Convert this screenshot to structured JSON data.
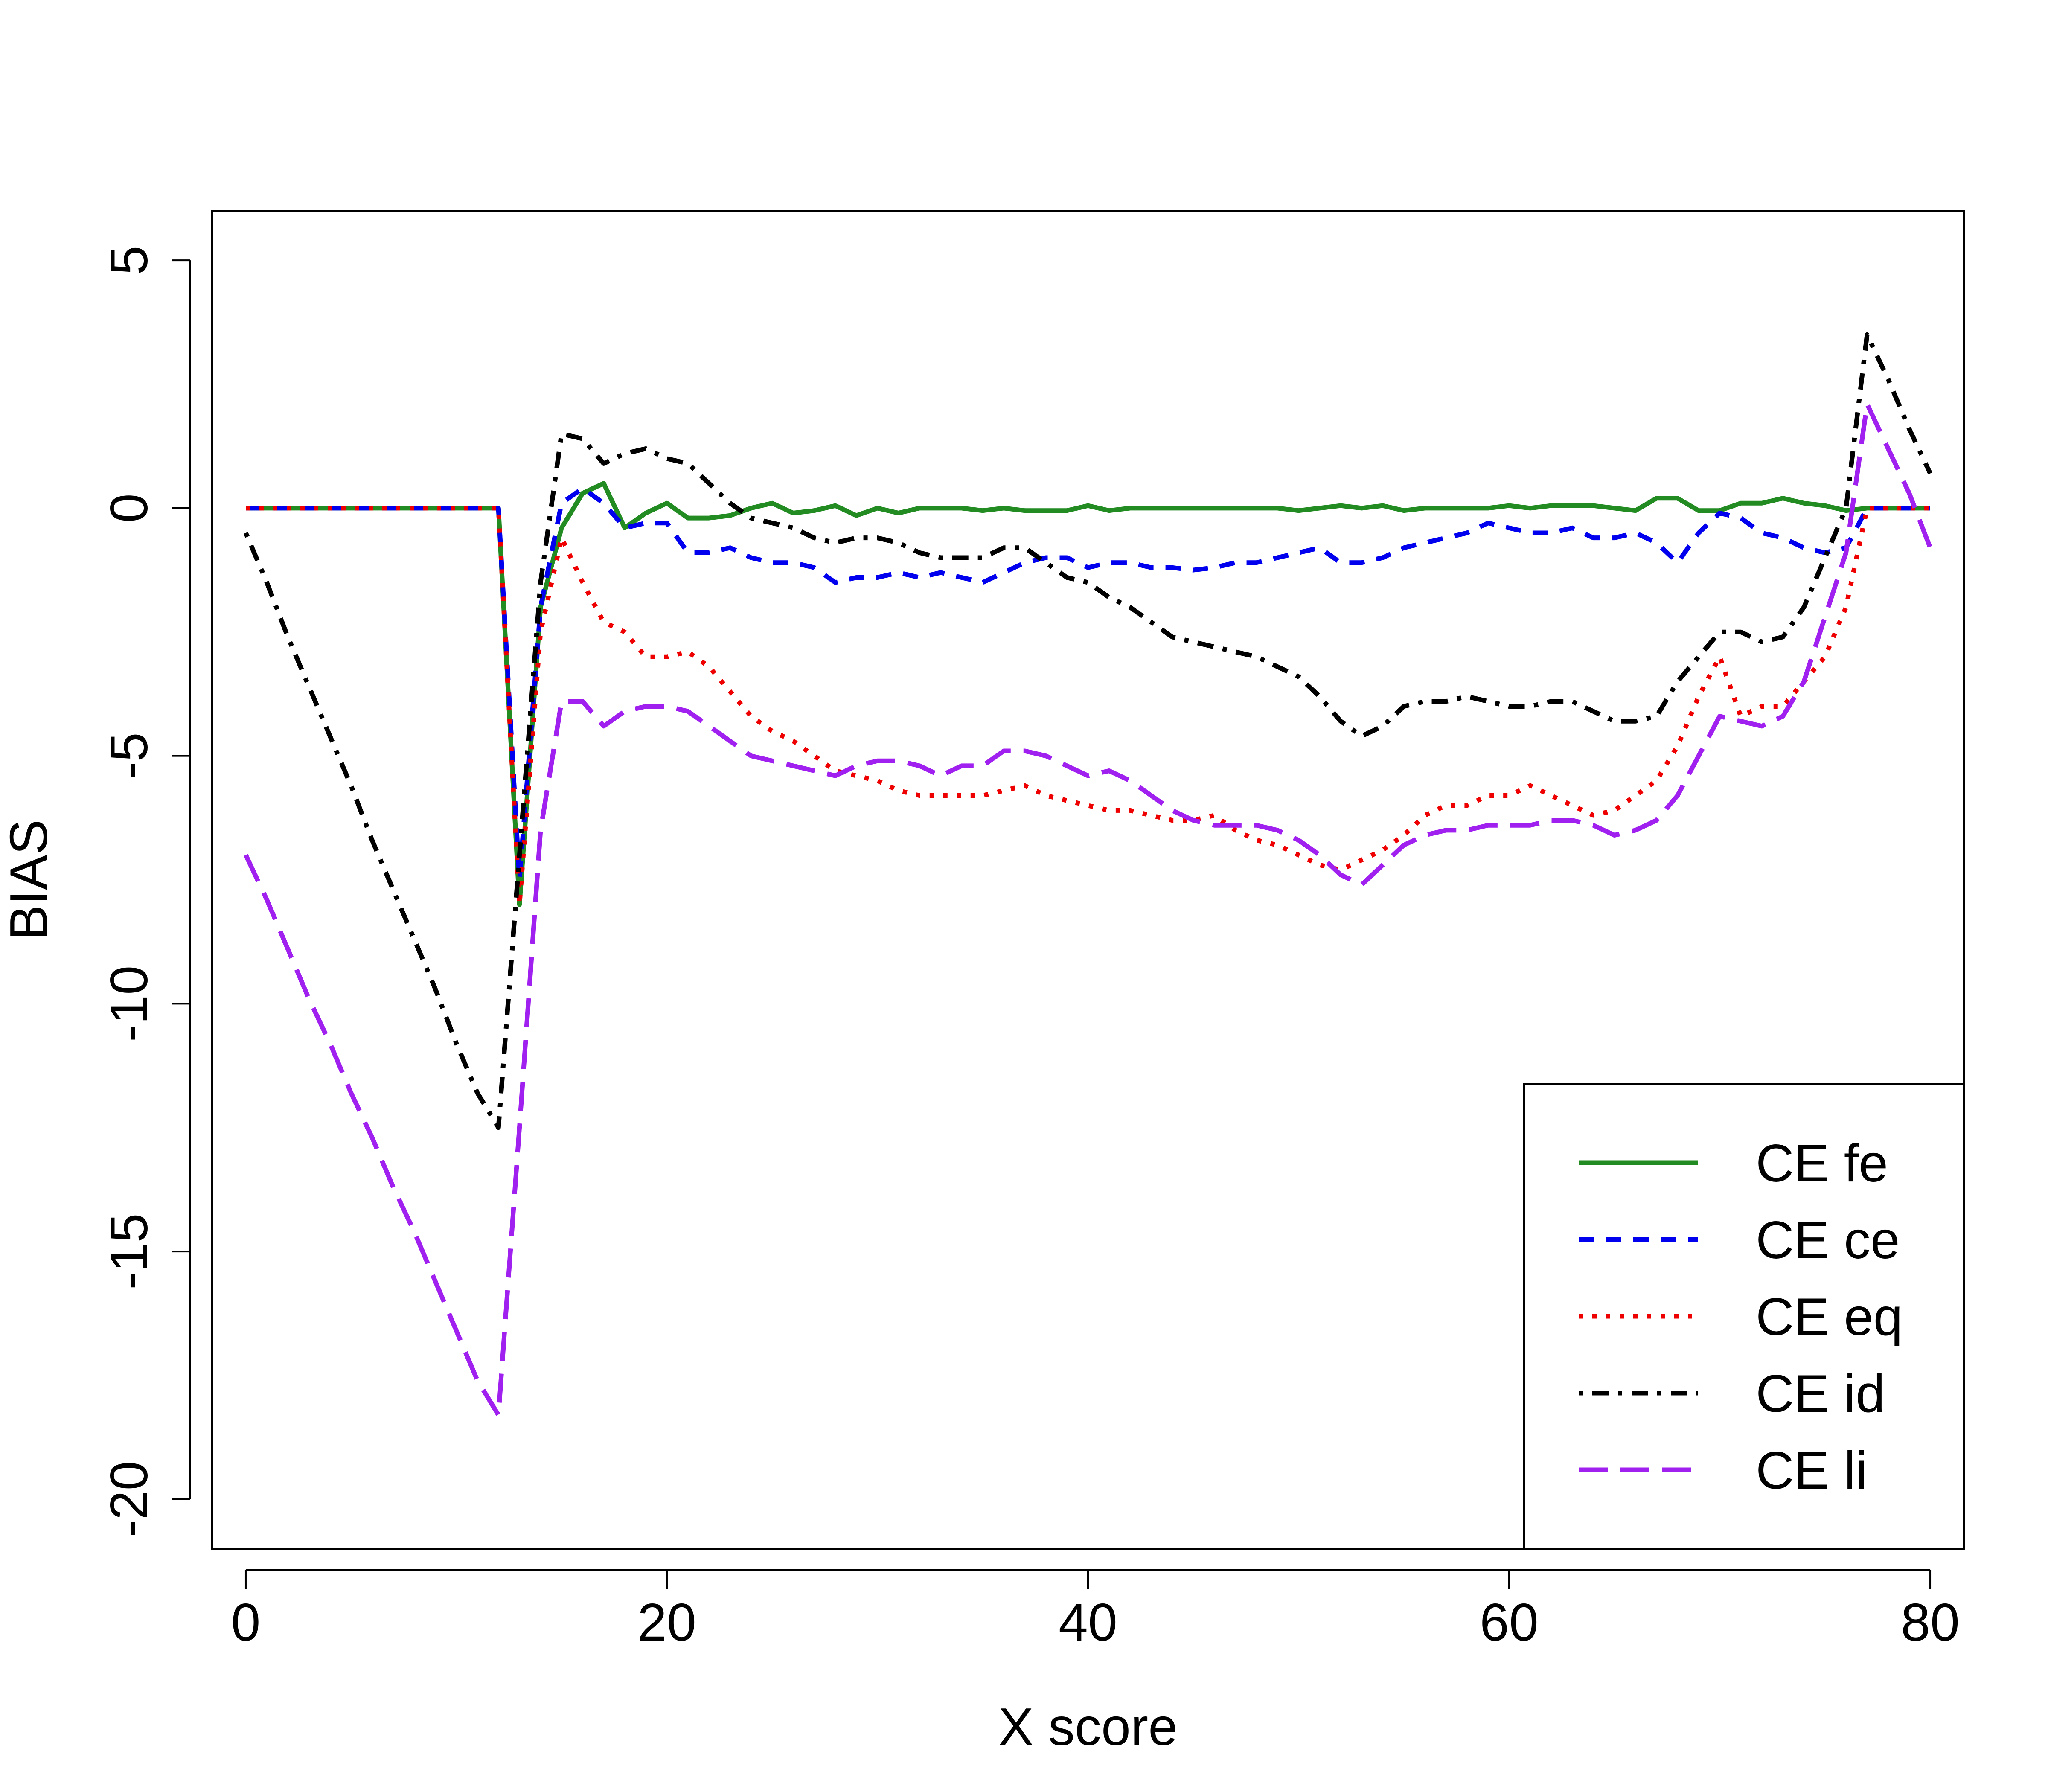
{
  "chart_data": {
    "type": "line",
    "title": "",
    "xlabel": "X score",
    "ylabel": "BIAS",
    "xlim": [
      -1.6,
      81.6
    ],
    "ylim": [
      -21,
      6
    ],
    "x_ticks": [
      0,
      20,
      40,
      60,
      80
    ],
    "y_ticks": [
      -20,
      -15,
      -10,
      -5,
      0,
      5
    ],
    "x_tick_labels": [
      "0",
      "20",
      "40",
      "60",
      "80"
    ],
    "y_tick_labels": [
      "-20",
      "-15",
      "-10",
      "-5",
      "0",
      "5"
    ],
    "grid": false,
    "legend_position": "bottom-right",
    "series": [
      {
        "name": "CE fe",
        "color": "#228B22",
        "dash": "solid",
        "x": [
          0,
          1,
          2,
          3,
          4,
          5,
          6,
          7,
          8,
          9,
          10,
          11,
          12,
          13,
          14,
          15,
          16,
          17,
          18,
          19,
          20,
          21,
          22,
          23,
          24,
          25,
          26,
          27,
          28,
          29,
          30,
          31,
          32,
          33,
          34,
          35,
          36,
          37,
          38,
          39,
          40,
          41,
          42,
          43,
          44,
          45,
          46,
          47,
          48,
          49,
          50,
          51,
          52,
          53,
          54,
          55,
          56,
          57,
          58,
          59,
          60,
          61,
          62,
          63,
          64,
          65,
          66,
          67,
          68,
          69,
          70,
          71,
          72,
          73,
          74,
          75,
          76,
          77,
          78,
          79,
          80
        ],
        "y": [
          0,
          0,
          0,
          0,
          0,
          0,
          0,
          0,
          0,
          0,
          0,
          0,
          0,
          -8,
          -2,
          -0.4,
          0.3,
          0.5,
          -0.4,
          -0.1,
          0.1,
          -0.2,
          -0.2,
          -0.15,
          0,
          0.1,
          -0.1,
          -0.05,
          0.05,
          -0.15,
          0,
          -0.1,
          0,
          0,
          0,
          -0.05,
          0,
          -0.05,
          -0.05,
          -0.05,
          0.05,
          -0.05,
          0,
          0,
          0,
          0,
          0,
          0,
          0,
          0,
          -0.05,
          0,
          0.05,
          0,
          0.05,
          -0.05,
          0,
          0,
          0,
          0,
          0.05,
          0,
          0.05,
          0.05,
          0.05,
          0,
          -0.05,
          0.2,
          0.2,
          -0.05,
          -0.05,
          0.1,
          0.1,
          0.2,
          0.1,
          0.05,
          -0.05,
          0,
          0,
          0,
          0
        ]
      },
      {
        "name": "CE ce",
        "color": "#0000EE",
        "dash": "dashed",
        "x": [
          0,
          1,
          2,
          3,
          4,
          5,
          6,
          7,
          8,
          9,
          10,
          11,
          12,
          13,
          14,
          15,
          16,
          17,
          18,
          19,
          20,
          21,
          22,
          23,
          24,
          25,
          26,
          27,
          28,
          29,
          30,
          31,
          32,
          33,
          34,
          35,
          36,
          37,
          38,
          39,
          40,
          41,
          42,
          43,
          44,
          45,
          46,
          47,
          48,
          49,
          50,
          51,
          52,
          53,
          54,
          55,
          56,
          57,
          58,
          59,
          60,
          61,
          62,
          63,
          64,
          65,
          66,
          67,
          68,
          69,
          70,
          71,
          72,
          73,
          74,
          75,
          76,
          77,
          78,
          79,
          80
        ],
        "y": [
          0,
          0,
          0,
          0,
          0,
          0,
          0,
          0,
          0,
          0,
          0,
          0,
          0,
          -7.5,
          -2,
          0.1,
          0.4,
          0.1,
          -0.4,
          -0.3,
          -0.3,
          -0.9,
          -0.9,
          -0.8,
          -1.0,
          -1.1,
          -1.1,
          -1.2,
          -1.5,
          -1.4,
          -1.4,
          -1.3,
          -1.4,
          -1.3,
          -1.4,
          -1.5,
          -1.3,
          -1.1,
          -1.0,
          -1.0,
          -1.2,
          -1.1,
          -1.1,
          -1.2,
          -1.2,
          -1.25,
          -1.2,
          -1.1,
          -1.1,
          -1.0,
          -0.9,
          -0.8,
          -1.1,
          -1.1,
          -1.0,
          -0.8,
          -0.7,
          -0.6,
          -0.5,
          -0.3,
          -0.4,
          -0.5,
          -0.5,
          -0.4,
          -0.6,
          -0.6,
          -0.5,
          -0.7,
          -1.1,
          -0.5,
          -0.1,
          -0.2,
          -0.5,
          -0.6,
          -0.8,
          -0.9,
          -0.8,
          0,
          0,
          0,
          0
        ]
      },
      {
        "name": "CE eq",
        "color": "#EE0000",
        "dash": "dotted",
        "x": [
          0,
          1,
          2,
          3,
          4,
          5,
          6,
          7,
          8,
          9,
          10,
          11,
          12,
          13,
          14,
          15,
          16,
          17,
          18,
          19,
          20,
          21,
          22,
          23,
          24,
          25,
          26,
          27,
          28,
          29,
          30,
          31,
          32,
          33,
          34,
          35,
          36,
          37,
          38,
          39,
          40,
          41,
          42,
          43,
          44,
          45,
          46,
          47,
          48,
          49,
          50,
          51,
          52,
          53,
          54,
          55,
          56,
          57,
          58,
          59,
          60,
          61,
          62,
          63,
          64,
          65,
          66,
          67,
          68,
          69,
          70,
          71,
          72,
          73,
          74,
          75,
          76,
          77,
          78,
          79,
          80
        ],
        "y": [
          0,
          0,
          0,
          0,
          0,
          0,
          0,
          0,
          0,
          0,
          0,
          0,
          0,
          -8,
          -2.5,
          -0.6,
          -1.5,
          -2.3,
          -2.5,
          -3.0,
          -3.0,
          -2.9,
          -3.2,
          -3.7,
          -4.2,
          -4.5,
          -4.7,
          -5.0,
          -5.3,
          -5.4,
          -5.5,
          -5.7,
          -5.8,
          -5.8,
          -5.8,
          -5.8,
          -5.7,
          -5.6,
          -5.8,
          -5.9,
          -6.0,
          -6.1,
          -6.1,
          -6.2,
          -6.3,
          -6.3,
          -6.2,
          -6.5,
          -6.7,
          -6.8,
          -7.0,
          -7.2,
          -7.3,
          -7.1,
          -6.9,
          -6.6,
          -6.2,
          -6.0,
          -6.0,
          -5.8,
          -5.8,
          -5.6,
          -5.8,
          -6.0,
          -6.2,
          -6.1,
          -5.8,
          -5.5,
          -4.8,
          -3.8,
          -3.0,
          -4.2,
          -4.0,
          -4.0,
          -3.5,
          -3.0,
          -2.0,
          0,
          0,
          0,
          0
        ]
      },
      {
        "name": "CE id",
        "color": "#000000",
        "dash": "dashdot",
        "x": [
          0,
          1,
          2,
          3,
          4,
          5,
          6,
          7,
          8,
          9,
          10,
          11,
          12,
          13,
          14,
          15,
          16,
          17,
          18,
          19,
          20,
          21,
          22,
          23,
          24,
          25,
          26,
          27,
          28,
          29,
          30,
          31,
          32,
          33,
          34,
          35,
          36,
          37,
          38,
          39,
          40,
          41,
          42,
          43,
          44,
          45,
          46,
          47,
          48,
          49,
          50,
          51,
          52,
          53,
          54,
          55,
          56,
          57,
          58,
          59,
          60,
          61,
          62,
          63,
          64,
          65,
          66,
          67,
          68,
          69,
          70,
          71,
          72,
          73,
          74,
          75,
          76,
          77,
          78,
          79,
          80
        ],
        "y": [
          -0.5,
          -1.5,
          -2.6,
          -3.6,
          -4.6,
          -5.6,
          -6.7,
          -7.7,
          -8.7,
          -9.7,
          -10.8,
          -11.8,
          -12.5,
          -7,
          -1.5,
          1.5,
          1.4,
          0.9,
          1.1,
          1.2,
          1.0,
          0.9,
          0.5,
          0.1,
          -0.2,
          -0.3,
          -0.4,
          -0.6,
          -0.7,
          -0.6,
          -0.6,
          -0.7,
          -0.9,
          -1.0,
          -1.0,
          -1.0,
          -0.8,
          -0.8,
          -1.1,
          -1.4,
          -1.5,
          -1.8,
          -2.0,
          -2.3,
          -2.6,
          -2.7,
          -2.8,
          -2.9,
          -3.0,
          -3.2,
          -3.4,
          -3.8,
          -4.3,
          -4.6,
          -4.4,
          -4.0,
          -3.9,
          -3.9,
          -3.8,
          -3.9,
          -4.0,
          -4.0,
          -3.9,
          -3.9,
          -4.1,
          -4.3,
          -4.3,
          -4.2,
          -3.5,
          -3.0,
          -2.5,
          -2.5,
          -2.7,
          -2.6,
          -2.0,
          -1.0,
          0,
          3.5,
          2.6,
          1.6,
          0.7
        ]
      },
      {
        "name": "CE li",
        "color": "#A020F0",
        "dash": "longdash",
        "x": [
          0,
          1,
          2,
          3,
          4,
          5,
          6,
          7,
          8,
          9,
          10,
          11,
          12,
          13,
          14,
          15,
          16,
          17,
          18,
          19,
          20,
          21,
          22,
          23,
          24,
          25,
          26,
          27,
          28,
          29,
          30,
          31,
          32,
          33,
          34,
          35,
          36,
          37,
          38,
          39,
          40,
          41,
          42,
          43,
          44,
          45,
          46,
          47,
          48,
          49,
          50,
          51,
          52,
          53,
          54,
          55,
          56,
          57,
          58,
          59,
          60,
          61,
          62,
          63,
          64,
          65,
          66,
          67,
          68,
          69,
          70,
          71,
          72,
          73,
          74,
          75,
          76,
          77,
          78,
          79,
          80
        ],
        "y": [
          -7.0,
          -7.9,
          -8.9,
          -9.9,
          -10.8,
          -11.8,
          -12.7,
          -13.7,
          -14.6,
          -15.6,
          -16.6,
          -17.6,
          -18.3,
          -12.5,
          -6.5,
          -3.9,
          -3.9,
          -4.4,
          -4.1,
          -4.0,
          -4.0,
          -4.1,
          -4.4,
          -4.7,
          -5.0,
          -5.1,
          -5.2,
          -5.3,
          -5.4,
          -5.2,
          -5.1,
          -5.1,
          -5.2,
          -5.4,
          -5.2,
          -5.2,
          -4.9,
          -4.9,
          -5.0,
          -5.2,
          -5.4,
          -5.3,
          -5.5,
          -5.8,
          -6.1,
          -6.3,
          -6.4,
          -6.4,
          -6.4,
          -6.5,
          -6.7,
          -7.0,
          -7.4,
          -7.6,
          -7.2,
          -6.8,
          -6.6,
          -6.5,
          -6.5,
          -6.4,
          -6.4,
          -6.4,
          -6.3,
          -6.3,
          -6.4,
          -6.6,
          -6.5,
          -6.3,
          -5.8,
          -5.0,
          -4.2,
          -4.3,
          -4.4,
          -4.2,
          -3.5,
          -2.2,
          -0.9,
          2.1,
          1.2,
          0.3,
          -0.8
        ]
      }
    ]
  }
}
